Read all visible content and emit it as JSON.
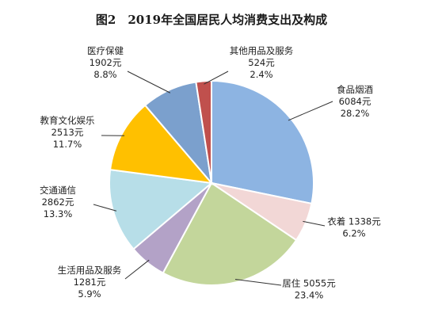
{
  "chart_data": {
    "type": "pie",
    "title": "图2　2019年全国居民人均消费支出及构成",
    "slices": [
      {
        "name": "食品烟酒",
        "value": 6084,
        "value_text": "6084元",
        "percent_text": "28.2%",
        "color": "#8DB4E2"
      },
      {
        "name": "衣着",
        "value": 1338,
        "value_text": "1338元",
        "percent_text": "6.2%",
        "color": "#F2D7D6"
      },
      {
        "name": "居住",
        "value": 5055,
        "value_text": "5055元",
        "percent_text": "23.4%",
        "color": "#C3D69B"
      },
      {
        "name": "生活用品及服务",
        "value": 1281,
        "value_text": "1281元",
        "percent_text": "5.9%",
        "color": "#B3A2C7"
      },
      {
        "name": "交通通信",
        "value": 2862,
        "value_text": "2862元",
        "percent_text": "13.3%",
        "color": "#B7DEE8"
      },
      {
        "name": "教育文化娱乐",
        "value": 2513,
        "value_text": "2513元",
        "percent_text": "11.7%",
        "color": "#FFC000"
      },
      {
        "name": "医疗保健",
        "value": 1902,
        "value_text": "1902元",
        "percent_text": "8.8%",
        "color": "#7BA0CD"
      },
      {
        "name": "其他用品及服务",
        "value": 524,
        "value_text": "524元",
        "percent_text": "2.4%",
        "color": "#C0504D"
      }
    ]
  }
}
